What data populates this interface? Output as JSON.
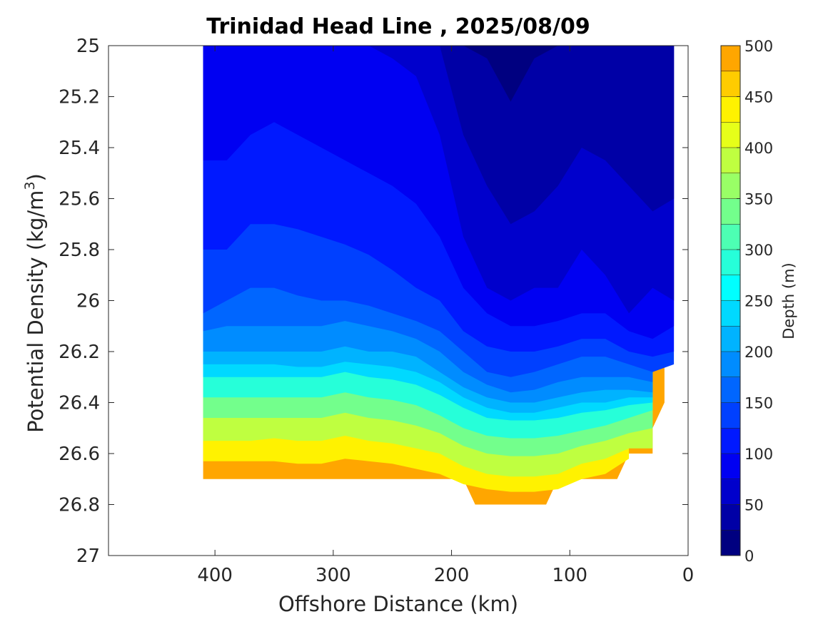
{
  "chart_data": {
    "type": "contour",
    "title": "Trinidad Head Line , 2025/08/09",
    "xlabel": "Offshore Distance (km)",
    "ylabel_main": "Potential Density (kg/m",
    "ylabel_sup": "3",
    "ylabel_close": ")",
    "xlim": [
      490,
      0
    ],
    "x_reversed": true,
    "ylim": [
      25,
      27
    ],
    "y_reversed": true,
    "xticks": [
      "400",
      "300",
      "200",
      "100",
      "0"
    ],
    "xtick_values": [
      400,
      300,
      200,
      100,
      0
    ],
    "yticks": [
      "25",
      "25.2",
      "25.4",
      "25.6",
      "25.8",
      "26",
      "26.2",
      "26.4",
      "26.6",
      "26.8",
      "27"
    ],
    "ytick_values": [
      25,
      25.2,
      25.4,
      25.6,
      25.8,
      26,
      26.2,
      26.4,
      26.6,
      26.8,
      27
    ],
    "colorbar": {
      "label": "Depth (m)",
      "range": [
        0,
        500
      ],
      "ticks": [
        "0",
        "50",
        "100",
        "150",
        "200",
        "250",
        "300",
        "350",
        "400",
        "450",
        "500"
      ],
      "tick_values": [
        0,
        50,
        100,
        150,
        200,
        250,
        300,
        350,
        400,
        450,
        500
      ],
      "level_step": 25,
      "colormap": "jet",
      "colors": [
        "#000080",
        "#0000a6",
        "#0000cc",
        "#0000f2",
        "#0019ff",
        "#0040ff",
        "#0066ff",
        "#008cff",
        "#00b3ff",
        "#00d9ff",
        "#00ffff",
        "#26ffd9",
        "#4dffb3",
        "#73ff8c",
        "#99ff66",
        "#bfff40",
        "#e6ff19",
        "#fff200",
        "#ffcc00",
        "#ffa600",
        "#ff8000",
        "#ff5900",
        "#ff3300",
        "#ff0d00",
        "#e60000",
        "#bf0000"
      ]
    },
    "x": [
      410,
      390,
      370,
      350,
      330,
      310,
      290,
      270,
      250,
      230,
      210,
      190,
      170,
      150,
      130,
      110,
      90,
      70,
      50,
      30,
      12
    ],
    "depth_at_25": [
      58,
      55,
      50,
      50,
      52,
      55,
      58,
      65,
      68,
      62,
      48,
      30,
      20,
      18,
      22,
      18,
      24,
      15,
      10,
      5,
      5
    ],
    "depth_at_26_7": [
      480,
      480,
      478,
      478,
      478,
      478,
      482,
      478,
      476,
      472,
      468,
      462,
      455,
      450,
      452,
      458,
      462,
      470,
      460,
      null,
      null
    ],
    "bottom_boundary": [
      {
        "x": 410,
        "y": 26.7
      },
      {
        "x": 190,
        "y": 26.7
      },
      {
        "x": 180,
        "y": 26.8
      },
      {
        "x": 120,
        "y": 26.8
      },
      {
        "x": 110,
        "y": 26.7
      },
      {
        "x": 60,
        "y": 26.7
      },
      {
        "x": 50,
        "y": 26.6
      },
      {
        "x": 30,
        "y": 26.6
      },
      {
        "x": 30,
        "y": 26.5
      },
      {
        "x": 20,
        "y": 26.4
      },
      {
        "x": 20,
        "y": 26.1
      },
      {
        "x": 12,
        "y": 26.0
      },
      {
        "x": 12,
        "y": 25.0
      }
    ],
    "isopycnal_depth_contours": [
      {
        "level": 25,
        "y": [
          25.0,
          25.0,
          25.0,
          25.0,
          25.0,
          25.0,
          25.0,
          25.0,
          25.0,
          25.0,
          25.0,
          25.0,
          25.05,
          25.22,
          25.05,
          25.0,
          25.0,
          25.0,
          25.0,
          25.0,
          25.0
        ]
      },
      {
        "level": 50,
        "y": [
          25.0,
          25.0,
          25.0,
          25.0,
          25.0,
          25.0,
          25.0,
          25.0,
          25.0,
          25.0,
          25.0,
          25.35,
          25.55,
          25.7,
          25.65,
          25.55,
          25.4,
          25.45,
          25.55,
          25.65,
          25.6
        ]
      },
      {
        "level": 75,
        "y": [
          25.0,
          25.0,
          25.0,
          25.0,
          25.0,
          25.0,
          25.0,
          25.0,
          25.05,
          25.12,
          25.35,
          25.75,
          25.95,
          26.0,
          25.95,
          25.95,
          25.8,
          25.9,
          26.05,
          25.95,
          26.0
        ]
      },
      {
        "level": 100,
        "y": [
          25.45,
          25.45,
          25.35,
          25.3,
          25.35,
          25.4,
          25.45,
          25.5,
          25.55,
          25.62,
          25.75,
          25.95,
          26.05,
          26.1,
          26.1,
          26.08,
          26.05,
          26.05,
          26.12,
          26.15,
          26.1
        ]
      },
      {
        "level": 125,
        "y": [
          25.8,
          25.8,
          25.7,
          25.7,
          25.72,
          25.75,
          25.78,
          25.82,
          25.88,
          25.95,
          26.0,
          26.12,
          26.18,
          26.2,
          26.2,
          26.18,
          26.15,
          26.15,
          26.2,
          26.22,
          26.2
        ]
      },
      {
        "level": 150,
        "y": [
          26.05,
          26.0,
          25.95,
          25.95,
          25.98,
          26.0,
          26.0,
          26.02,
          26.05,
          26.08,
          26.12,
          26.2,
          26.28,
          26.3,
          26.28,
          26.25,
          26.22,
          26.22,
          26.25,
          26.28,
          26.25
        ]
      },
      {
        "level": 175,
        "y": [
          26.12,
          26.1,
          26.1,
          26.1,
          26.1,
          26.1,
          26.08,
          26.1,
          26.12,
          26.15,
          26.2,
          26.28,
          26.33,
          26.36,
          26.35,
          26.32,
          26.3,
          26.3,
          26.3,
          26.32,
          null
        ]
      },
      {
        "level": 200,
        "y": [
          26.2,
          26.2,
          26.2,
          26.2,
          26.2,
          26.2,
          26.18,
          26.2,
          26.2,
          26.22,
          26.28,
          26.34,
          26.38,
          26.4,
          26.4,
          26.38,
          26.36,
          26.35,
          26.35,
          26.36,
          null
        ]
      },
      {
        "level": 225,
        "y": [
          26.25,
          26.25,
          26.25,
          26.25,
          26.26,
          26.26,
          26.24,
          26.25,
          26.26,
          26.28,
          26.32,
          26.38,
          26.42,
          26.44,
          26.44,
          26.42,
          26.4,
          26.4,
          26.38,
          26.38,
          null
        ]
      },
      {
        "level": 250,
        "y": [
          26.3,
          26.3,
          26.3,
          26.3,
          26.3,
          26.3,
          26.28,
          26.3,
          26.31,
          26.33,
          26.37,
          26.42,
          26.46,
          26.47,
          26.47,
          26.46,
          26.44,
          26.43,
          26.41,
          26.4,
          null
        ]
      },
      {
        "level": 300,
        "y": [
          26.38,
          26.38,
          26.38,
          26.38,
          26.38,
          26.38,
          26.36,
          26.38,
          26.39,
          26.41,
          26.45,
          26.5,
          26.53,
          26.54,
          26.54,
          26.53,
          26.51,
          26.49,
          26.46,
          26.43,
          null
        ]
      },
      {
        "level": 350,
        "y": [
          26.46,
          26.46,
          26.46,
          26.46,
          26.46,
          26.46,
          26.44,
          26.46,
          26.47,
          26.49,
          26.52,
          26.57,
          26.6,
          26.61,
          26.61,
          26.6,
          26.57,
          26.55,
          26.52,
          26.5,
          null
        ]
      },
      {
        "level": 400,
        "y": [
          26.55,
          26.55,
          26.55,
          26.54,
          26.55,
          26.55,
          26.53,
          26.55,
          26.56,
          26.58,
          26.6,
          26.65,
          26.68,
          26.69,
          26.69,
          26.68,
          26.64,
          26.62,
          26.58,
          26.58,
          null
        ]
      },
      {
        "level": 450,
        "y": [
          26.63,
          26.63,
          26.63,
          26.63,
          26.64,
          26.64,
          26.62,
          26.63,
          26.64,
          26.66,
          26.68,
          26.72,
          26.74,
          26.75,
          26.75,
          26.74,
          26.7,
          26.68,
          26.62,
          null,
          null
        ]
      }
    ]
  }
}
